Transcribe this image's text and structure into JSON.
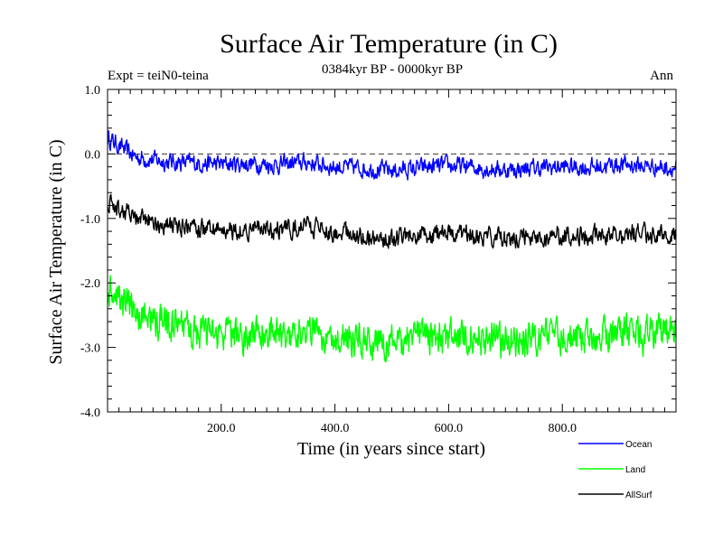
{
  "chart_data": {
    "type": "line",
    "title": "Surface Air Temperature (in C)",
    "subtitle": "0384kyr BP - 0000kyr BP",
    "experiment_label": "Expt = teiN0-teina",
    "period_label": "Ann",
    "xlabel": "Time (in years since start)",
    "ylabel": "Surface Air Temperature (in C)",
    "xlim": [
      0,
      1000
    ],
    "ylim": [
      -4.0,
      1.0
    ],
    "x_ticks": [
      200,
      400,
      600,
      800
    ],
    "x_tick_labels": [
      "200.0",
      "400.0",
      "600.0",
      "800.0"
    ],
    "y_ticks": [
      1.0,
      0.0,
      -1.0,
      -2.0,
      -3.0,
      -4.0
    ],
    "y_tick_labels": [
      "1.0",
      "0.0",
      "-1.0",
      "-2.0",
      "-3.0",
      "-4.0"
    ],
    "reference_line": {
      "y": 0.0,
      "style": "dashed",
      "color": "#000000"
    },
    "legend_position": "bottom-right, below plot",
    "x": [
      0,
      50,
      100,
      150,
      200,
      250,
      300,
      350,
      400,
      450,
      500,
      550,
      600,
      650,
      700,
      750,
      800,
      850,
      900,
      950,
      1000
    ],
    "series": [
      {
        "name": "Ocean",
        "color": "#0000ff",
        "values": [
          0.25,
          -0.05,
          -0.12,
          -0.14,
          -0.16,
          -0.15,
          -0.17,
          -0.13,
          -0.2,
          -0.22,
          -0.26,
          -0.22,
          -0.18,
          -0.21,
          -0.25,
          -0.22,
          -0.2,
          -0.21,
          -0.16,
          -0.19,
          -0.22
        ]
      },
      {
        "name": "Land",
        "color": "#00ff00",
        "values": [
          -2.15,
          -2.45,
          -2.65,
          -2.75,
          -2.82,
          -2.8,
          -2.78,
          -2.72,
          -2.85,
          -2.9,
          -2.95,
          -2.85,
          -2.8,
          -2.85,
          -2.9,
          -2.85,
          -2.82,
          -2.85,
          -2.8,
          -2.82,
          -2.75
        ]
      },
      {
        "name": "AllSurf",
        "color": "#000000",
        "values": [
          -0.75,
          -1.0,
          -1.1,
          -1.15,
          -1.18,
          -1.17,
          -1.18,
          -1.12,
          -1.22,
          -1.28,
          -1.32,
          -1.27,
          -1.22,
          -1.26,
          -1.3,
          -1.27,
          -1.25,
          -1.27,
          -1.22,
          -1.24,
          -1.25
        ]
      }
    ]
  }
}
